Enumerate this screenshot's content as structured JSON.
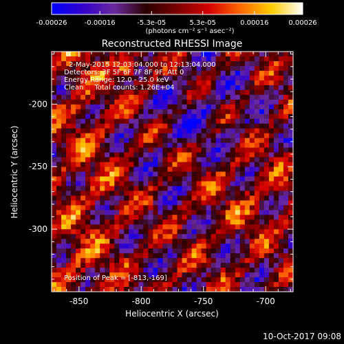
{
  "colorbar": {
    "tick_labels": [
      "-0.00026",
      "-0.00016",
      "-5.3e-05",
      "5.3e-05",
      "0.00016",
      "0.00026"
    ],
    "tick_values": [
      -0.00026,
      -0.00016,
      -5.3e-05,
      5.3e-05,
      0.00016,
      0.00026
    ],
    "range": [
      -0.00026,
      0.00026
    ],
    "units_label": "(photons cm⁻² s⁻¹ asec⁻²)",
    "gradient_stops": [
      "#0000ff",
      "#3300cc",
      "#6a2aa0",
      "#2a0000",
      "#7a0000",
      "#d40000",
      "#ff6600",
      "#ffcc00",
      "#ffffff"
    ]
  },
  "plot": {
    "title": "Reconstructed RHESSI Image",
    "xlabel": "Heliocentric X (arcsec)",
    "ylabel": "Heliocentric Y (arcsec)",
    "x_tick_labels": [
      "-850",
      "-800",
      "-750",
      "-700"
    ],
    "x_tick_values": [
      -850,
      -800,
      -750,
      -700
    ],
    "y_tick_labels": [
      "-200",
      "-250",
      "-300"
    ],
    "y_tick_values": [
      -200,
      -250,
      -300
    ],
    "xlim": [
      -872,
      -678
    ],
    "ylim": [
      -350,
      -158
    ],
    "axis_color": "#ffffff"
  },
  "annotations": {
    "line1": "2-May-2015 12:03:04.000 to 12:13:04.000",
    "line2": "Detectors: 3F 5F 6F 7F 8F 9F, Att 0",
    "line3": "Energy Range: 12.0 - 25.0 keV",
    "line4": "Clean     Total counts: 1.26E+04",
    "peak": "Position of Peak = [-813,-169]"
  },
  "footer": {
    "timestamp": "10-Oct-2017 09:08"
  },
  "image": {
    "grid_cols": 50,
    "grid_rows": 50,
    "peak_position": [
      -813,
      -169
    ]
  }
}
